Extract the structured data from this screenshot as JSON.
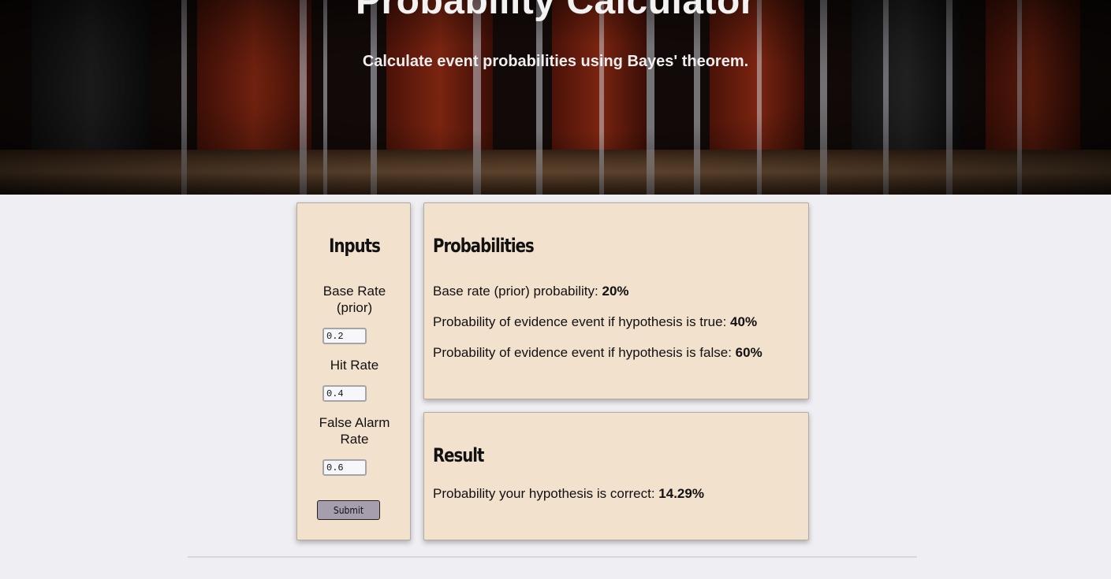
{
  "header": {
    "title": "Probability Calculator",
    "subtitle": "Calculate event probabilities using Bayes' theorem."
  },
  "inputs": {
    "heading": "Inputs",
    "base_rate_label": "Base Rate (prior)",
    "base_rate_value": "0.2",
    "hit_rate_label": "Hit Rate",
    "hit_rate_value": "0.4",
    "false_alarm_label": "False Alarm Rate",
    "false_alarm_value": "0.6",
    "submit_label": "Submit"
  },
  "probabilities": {
    "heading": "Probabilities",
    "base_rate_text": "Base rate (prior) probability: ",
    "base_rate_value": "20%",
    "hit_text": "Probability of evidence event if hypothesis is true: ",
    "hit_value": "40%",
    "false_text": "Probability of evidence event if hypothesis is false: ",
    "false_value": "60%"
  },
  "result": {
    "heading": "Result",
    "text": "Probability your hypothesis is correct: ",
    "value": "14.29%"
  },
  "colors": {
    "panel_bg": "#f2e1cd",
    "page_bg": "#efeff3",
    "submit_bg": "#a69ead"
  }
}
